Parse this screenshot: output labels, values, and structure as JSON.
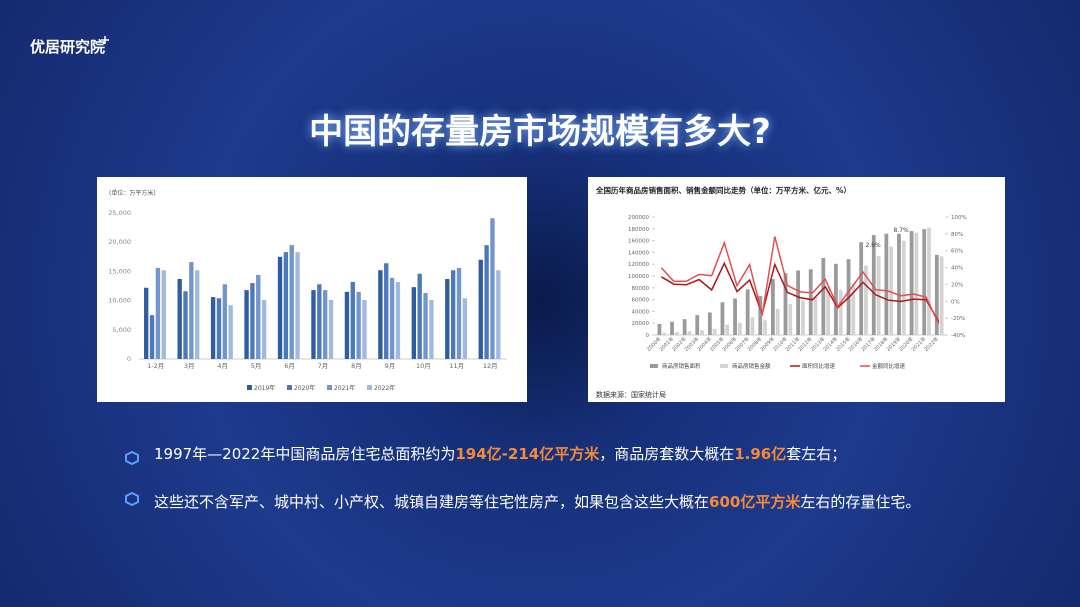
{
  "brand": "优居研究院",
  "title": "中国的存量房市场规模有多大?",
  "chart_data": [
    {
      "type": "bar",
      "unit": "(单位：万平方米)",
      "categories": [
        "1-2月",
        "3月",
        "4月",
        "5月",
        "6月",
        "7月",
        "8月",
        "9月",
        "10月",
        "11月",
        "12月"
      ],
      "series": [
        {
          "name": "2019年",
          "color": "#2f5d9f",
          "values": [
            12200,
            13700,
            10600,
            11800,
            17500,
            11800,
            11500,
            15200,
            12300,
            13700,
            17000
          ]
        },
        {
          "name": "2020年",
          "color": "#4c79b9",
          "values": [
            7500,
            11600,
            10400,
            13000,
            18300,
            12800,
            13200,
            16400,
            14600,
            15200,
            19500
          ]
        },
        {
          "name": "2021年",
          "color": "#7195cd",
          "values": [
            15600,
            16600,
            12800,
            14400,
            19500,
            11800,
            11500,
            13900,
            11300,
            15600,
            24100
          ]
        },
        {
          "name": "2022年",
          "color": "#a2b9de",
          "values": [
            15200,
            15200,
            9200,
            10100,
            18300,
            10100,
            10100,
            13200,
            10100,
            10400,
            15200
          ]
        }
      ],
      "ylim": [
        0,
        25000
      ],
      "yticks": [
        0,
        {
          "value": 5000,
          "label": "5,000"
        },
        {
          "value": 10000,
          "label": "10,000"
        },
        {
          "value": 15000,
          "label": "15,000"
        },
        {
          "value": 20000,
          "label": "20,000"
        },
        {
          "value": 25000,
          "label": "25,000"
        }
      ],
      "grid": false
    },
    {
      "type": "combo",
      "title": "全国历年商品房销售面积、销售金额同比走势（单位：万平方米、亿元、%）",
      "categories": [
        "2000年",
        "2001年",
        "2002年",
        "2003年",
        "2004年",
        "2005年",
        "2006年",
        "2007年",
        "2008年",
        "2009年",
        "2010年",
        "2011年",
        "2012年",
        "2013年",
        "2014年",
        "2015年",
        "2016年",
        "2017年",
        "2018年",
        "2019年",
        "2020年",
        "2021年",
        "2022年"
      ],
      "series": [
        {
          "name": "商品房销售面积",
          "type": "bar",
          "color": "#9a9a9a",
          "values": [
            18637,
            22412,
            26808,
            33718,
            38232,
            55486,
            61857,
            77355,
            65970,
            94755,
            104765,
            109366,
            111304,
            130551,
            120649,
            128495,
            157349,
            169408,
            171654,
            171558,
            176086,
            179433,
            135837
          ]
        },
        {
          "name": "商品房销售金额",
          "type": "bar",
          "color": "#d3d3d3",
          "values": [
            3935,
            4863,
            6032,
            7956,
            10376,
            17576,
            20826,
            29889,
            25068,
            44355,
            52721,
            58589,
            64456,
            81428,
            76292,
            87281,
            117627,
            133701,
            149973,
            159725,
            173613,
            181930,
            133308
          ]
        },
        {
          "name": "面积同比增速",
          "type": "line",
          "axis": "y2",
          "color": "#b01818",
          "values": [
            29.1,
            20.3,
            19.6,
            25.8,
            13.4,
            45.1,
            11.5,
            25.1,
            -14.7,
            43.6,
            10.6,
            4.4,
            1.8,
            17.3,
            -7.6,
            6.5,
            22.5,
            7.7,
            1.3,
            -0.1,
            2.6,
            1.9,
            -24.3
          ]
        },
        {
          "name": "金额同比增速",
          "type": "line",
          "axis": "y2",
          "color": "#e05050",
          "values": [
            39.8,
            23.6,
            24.0,
            31.9,
            30.4,
            69.4,
            18.5,
            43.5,
            -16.1,
            76.9,
            18.9,
            11.1,
            10.0,
            26.3,
            -6.3,
            14.4,
            34.8,
            13.7,
            12.2,
            6.5,
            8.7,
            4.8,
            -26.7
          ]
        }
      ],
      "annotations": [
        "8.7%",
        "2.6%"
      ],
      "ylim": [
        0,
        200000
      ],
      "yticks": [
        0,
        20000,
        40000,
        60000,
        80000,
        100000,
        120000,
        140000,
        160000,
        180000,
        200000
      ],
      "y2lim": [
        -40,
        100
      ],
      "y2ticks": [
        {
          "value": -40,
          "label": "-40%"
        },
        {
          "value": -20,
          "label": "-20%"
        },
        {
          "value": 0,
          "label": "0%"
        },
        {
          "value": 20,
          "label": "20%"
        },
        {
          "value": 40,
          "label": "40%"
        },
        {
          "value": 60,
          "label": "60%"
        },
        {
          "value": 80,
          "label": "80%"
        },
        {
          "value": 100,
          "label": "100%"
        }
      ],
      "source": "数据来源：国家统计局"
    }
  ],
  "bullets": [
    [
      "1997年—2022年中国商品房住宅总面积约为",
      "194亿-214亿平方米",
      "，商品房套数大概在",
      "1.96亿",
      "套左右；"
    ],
    [
      "这些还不含军产、城中村、小产权、城镇自建房等住宅性房产，如果包含这些大概在",
      "600亿平方米",
      "左右的存量住宅。"
    ]
  ]
}
